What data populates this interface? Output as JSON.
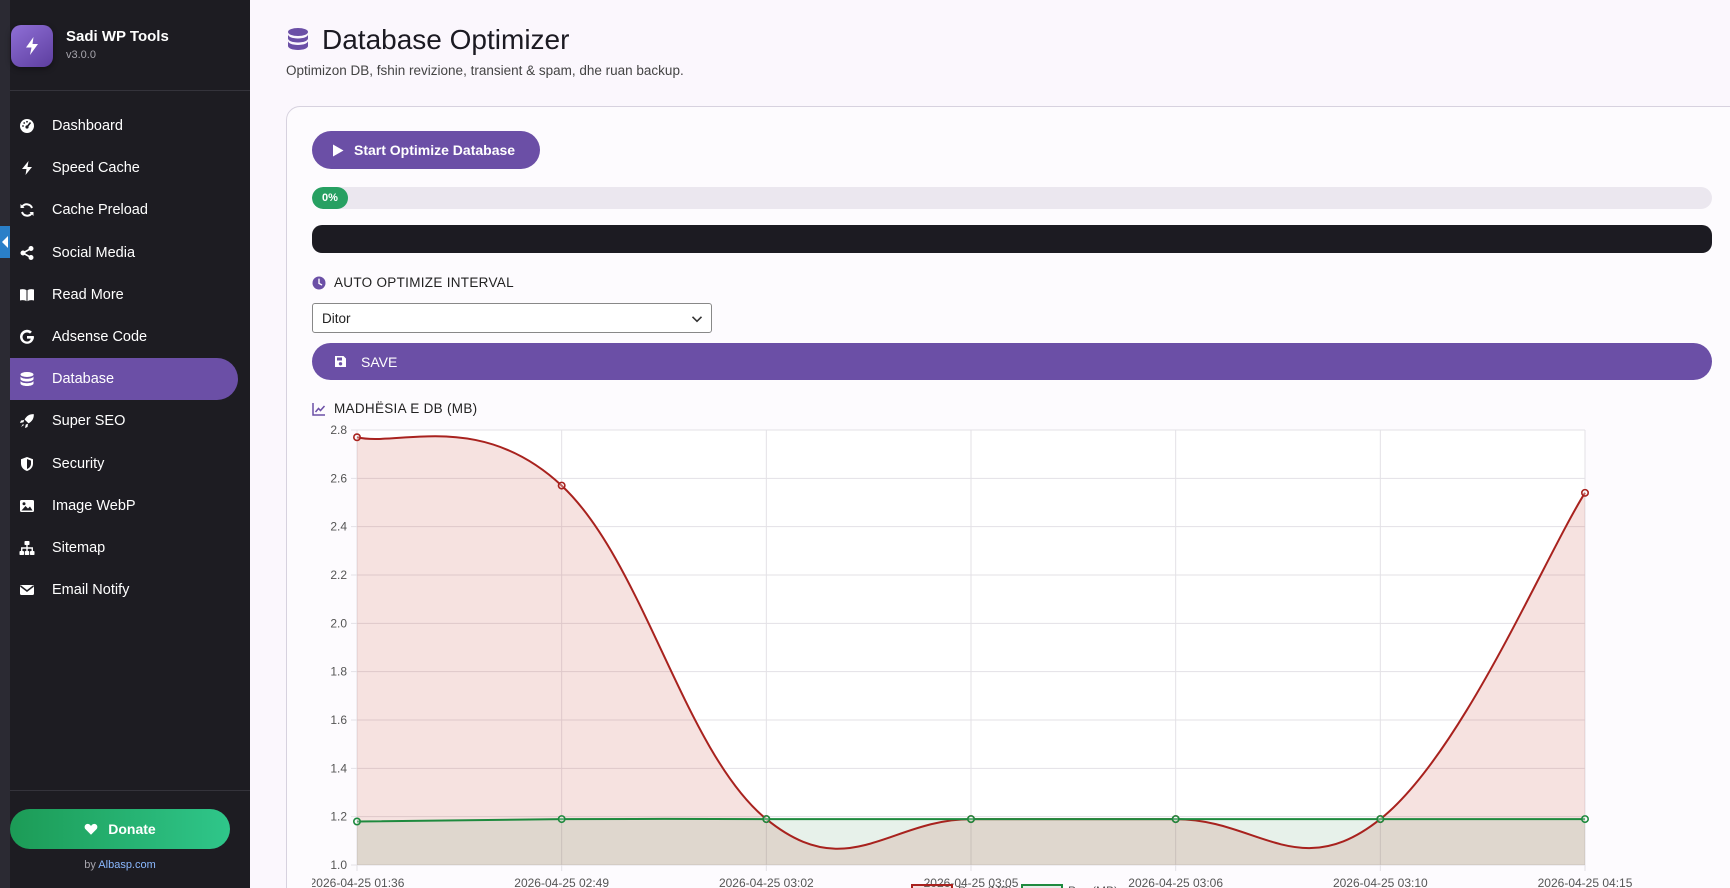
{
  "brand": {
    "name": "Sadi WP Tools",
    "version": "v3.0.0"
  },
  "sidebar": {
    "items": [
      {
        "label": "Dashboard",
        "icon": "gauge-icon",
        "active": false
      },
      {
        "label": "Speed Cache",
        "icon": "bolt-icon",
        "active": false
      },
      {
        "label": "Cache Preload",
        "icon": "sync-icon",
        "active": false
      },
      {
        "label": "Social Media",
        "icon": "share-icon",
        "active": false
      },
      {
        "label": "Read More",
        "icon": "book-icon",
        "active": false
      },
      {
        "label": "Adsense Code",
        "icon": "google-icon",
        "active": false
      },
      {
        "label": "Database",
        "icon": "database-icon",
        "active": true
      },
      {
        "label": "Super SEO",
        "icon": "rocket-icon",
        "active": false
      },
      {
        "label": "Security",
        "icon": "shield-icon",
        "active": false
      },
      {
        "label": "Image WebP",
        "icon": "image-icon",
        "active": false
      },
      {
        "label": "Sitemap",
        "icon": "sitemap-icon",
        "active": false
      },
      {
        "label": "Email Notify",
        "icon": "envelope-icon",
        "active": false
      }
    ],
    "donate_label": "Donate",
    "byline_prefix": "by ",
    "byline_link": "Albasp.com"
  },
  "page": {
    "title": "Database Optimizer",
    "subtitle": "Optimizon DB, fshin revizione, transient & spam, dhe ruan backup."
  },
  "optimizer": {
    "start_label": "Start Optimize Database",
    "progress_percent": 0,
    "progress_label": "0%"
  },
  "interval": {
    "heading": "AUTO OPTIMIZE INTERVAL",
    "selected": "Ditor",
    "save_label": "SAVE"
  },
  "chart_section": {
    "heading": "MADHËSIA E DB (MB)"
  },
  "colors": {
    "accent": "#6b4fa6",
    "sidebar": "#1d1c22",
    "success": "#27a062",
    "series_before": "#a8221e",
    "series_after": "#1e8a3e"
  },
  "chart_data": {
    "type": "area",
    "x": [
      "2026-04-25 01:36",
      "2026-04-25 02:49",
      "2026-04-25 03:02",
      "2026-04-25 03:05",
      "2026-04-25 03:06",
      "2026-04-25 03:10",
      "2026-04-25 04:15"
    ],
    "series": [
      {
        "name": "Para (MB)",
        "color": "#a8221e",
        "values": [
          2.77,
          2.57,
          1.19,
          1.19,
          1.19,
          1.19,
          2.54
        ]
      },
      {
        "name": "Pas (MB)",
        "color": "#1e8a3e",
        "values": [
          1.18,
          1.19,
          1.19,
          1.19,
          1.19,
          1.19,
          1.19
        ]
      }
    ],
    "ylim": [
      1.0,
      2.8
    ],
    "yticks": [
      "2.8",
      "2.6",
      "2.4",
      "2.2",
      "2.0",
      "1.8",
      "1.6",
      "1.4",
      "1.2",
      "1.0"
    ],
    "grid": true,
    "legend": "bottom"
  }
}
